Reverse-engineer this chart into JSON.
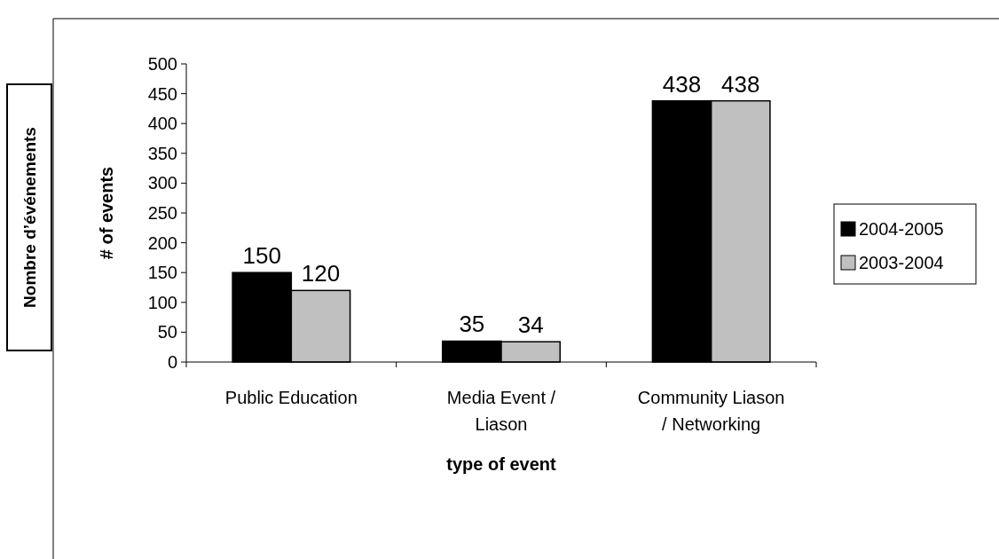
{
  "chart_data": {
    "type": "bar",
    "xlabel": "type of event",
    "ylabel": "# of events",
    "categories": [
      "Public Education",
      "Media Event / Liason",
      "Community Liason / Networking"
    ],
    "series": [
      {
        "name": "2004-2005",
        "color": "#000000",
        "values": [
          150,
          35,
          438
        ]
      },
      {
        "name": "2003-2004",
        "color": "#c0c0c0",
        "values": [
          120,
          34,
          438
        ]
      }
    ],
    "ylim": [
      0,
      500
    ],
    "yticks": [
      0,
      50,
      100,
      150,
      200,
      250,
      300,
      350,
      400,
      450,
      500
    ],
    "data_labels": true,
    "legend": "right",
    "grid": false,
    "annotations": [
      "Nombre d’événements"
    ]
  }
}
